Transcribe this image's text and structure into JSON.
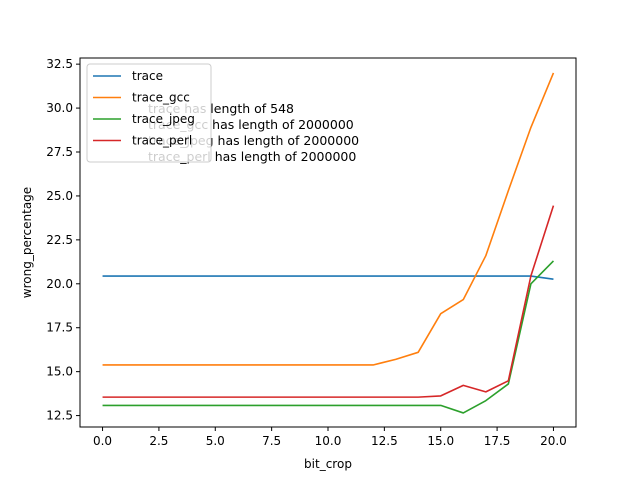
{
  "chart_data": {
    "type": "line",
    "title": "",
    "xlabel": "bit_crop",
    "ylabel": "wrong_percentage",
    "xlim": [
      -1,
      21
    ],
    "ylim": [
      11.85,
      32.85
    ],
    "xticks": [
      0.0,
      2.5,
      5.0,
      7.5,
      10.0,
      12.5,
      15.0,
      17.5,
      20.0
    ],
    "xtick_labels": [
      "0.0",
      "2.5",
      "5.0",
      "7.5",
      "10.0",
      "12.5",
      "15.0",
      "17.5",
      "20.0"
    ],
    "yticks": [
      12.5,
      15.0,
      17.5,
      20.0,
      22.5,
      25.0,
      27.5,
      30.0,
      32.5
    ],
    "ytick_labels": [
      "12.5",
      "15.0",
      "17.5",
      "20.0",
      "22.5",
      "25.0",
      "27.5",
      "30.0",
      "32.5"
    ],
    "grid": false,
    "legend_position": "top-left",
    "x": [
      0,
      1,
      2,
      3,
      4,
      5,
      6,
      7,
      8,
      9,
      10,
      11,
      12,
      13,
      14,
      15,
      16,
      17,
      18,
      19,
      20
    ],
    "series": [
      {
        "name": "trace",
        "color": "#1f77b4",
        "values": [
          20.44,
          20.44,
          20.44,
          20.44,
          20.44,
          20.44,
          20.44,
          20.44,
          20.44,
          20.44,
          20.44,
          20.44,
          20.44,
          20.44,
          20.44,
          20.44,
          20.44,
          20.44,
          20.44,
          20.44,
          20.26
        ]
      },
      {
        "name": "trace_gcc",
        "color": "#ff7f0e",
        "values": [
          15.38,
          15.38,
          15.38,
          15.38,
          15.38,
          15.38,
          15.38,
          15.38,
          15.38,
          15.38,
          15.38,
          15.38,
          15.38,
          15.7,
          16.1,
          18.3,
          19.1,
          21.6,
          25.3,
          28.9,
          32.0
        ]
      },
      {
        "name": "trace_jpeg",
        "color": "#2ca02c",
        "values": [
          13.08,
          13.08,
          13.08,
          13.08,
          13.08,
          13.08,
          13.08,
          13.08,
          13.08,
          13.08,
          13.08,
          13.08,
          13.08,
          13.08,
          13.08,
          13.08,
          12.65,
          13.35,
          14.3,
          20.0,
          21.3
        ]
      },
      {
        "name": "trace_perl",
        "color": "#d62728",
        "values": [
          13.55,
          13.55,
          13.55,
          13.55,
          13.55,
          13.55,
          13.55,
          13.55,
          13.55,
          13.55,
          13.55,
          13.55,
          13.55,
          13.55,
          13.55,
          13.62,
          14.22,
          13.85,
          14.48,
          20.45,
          24.45
        ]
      }
    ],
    "annotations": [
      "trace has length of 548",
      "trace_gcc has length of 2000000",
      "trace_jpeg has length of 2000000",
      "trace_perl has length of 2000000"
    ]
  }
}
